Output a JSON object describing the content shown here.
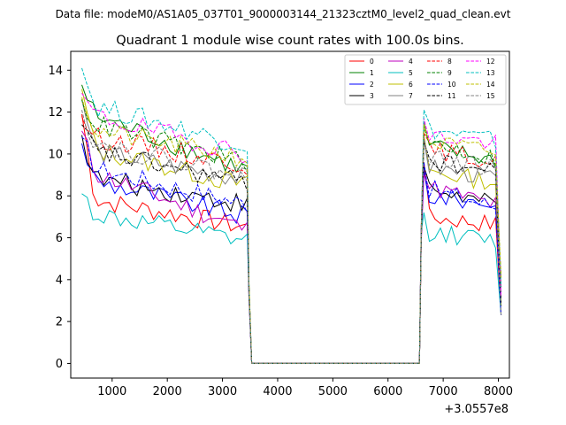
{
  "chart_data": {
    "type": "line",
    "suptitle": "Data file: modeM0/AS1A05_037T01_9000003144_21323cztM0_level2_quad_clean.evt",
    "title": "Quadrant 1 module wise count rates with 100.0s bins.",
    "xlabel": "",
    "ylabel": "",
    "x_offset_label": "+3.0557e8",
    "xlim": [
      250,
      8200
    ],
    "ylim": [
      -0.7,
      14.9
    ],
    "xticks": [
      "1000",
      "2000",
      "3000",
      "4000",
      "5000",
      "6000",
      "7000",
      "8000"
    ],
    "yticks": [
      "0",
      "2",
      "4",
      "6",
      "8",
      "10",
      "12",
      "14"
    ],
    "gap": [
      3530,
      6570
    ],
    "segment1_x": [
      450,
      3450
    ],
    "segment2_x": [
      6650,
      8050
    ],
    "legend_position": "upper right",
    "series": [
      {
        "name": "0",
        "color": "#ff0000",
        "dash": "solid",
        "start1": 11.9,
        "level1": 7.2,
        "end1": 6.5,
        "start2": 9.6,
        "level2": 7.0,
        "end2": 6.6
      },
      {
        "name": "1",
        "color": "#008000",
        "dash": "solid",
        "start1": 13.3,
        "level1": 11.2,
        "end1": 9.2,
        "start2": 11.5,
        "level2": 10.4,
        "end2": 9.6
      },
      {
        "name": "2",
        "color": "#0000ff",
        "dash": "solid",
        "start1": 10.5,
        "level1": 8.1,
        "end1": 7.0,
        "start2": 9.2,
        "level2": 8.0,
        "end2": 7.6
      },
      {
        "name": "3",
        "color": "#000000",
        "dash": "solid",
        "start1": 10.9,
        "level1": 8.2,
        "end1": 7.6,
        "start2": 9.4,
        "level2": 8.4,
        "end2": 7.5
      },
      {
        "name": "4",
        "color": "#bf00bf",
        "dash": "solid",
        "start1": 11.1,
        "level1": 8.5,
        "end1": 6.4,
        "start2": 9.0,
        "level2": 8.5,
        "end2": 7.5
      },
      {
        "name": "5",
        "color": "#00bfbf",
        "dash": "solid",
        "start1": 8.1,
        "level1": 6.5,
        "end1": 5.8,
        "start2": 7.2,
        "level2": 6.3,
        "end2": 5.8
      },
      {
        "name": "6",
        "color": "#bfbf00",
        "dash": "solid",
        "start1": 13.1,
        "level1": 9.6,
        "end1": 8.5,
        "start2": 10.9,
        "level2": 9.2,
        "end2": 8.6
      },
      {
        "name": "7",
        "color": "#808080",
        "dash": "solid",
        "start1": 12.6,
        "level1": 9.5,
        "end1": 8.8,
        "start2": 10.7,
        "level2": 9.4,
        "end2": 8.8
      },
      {
        "name": "8",
        "color": "#ff0000",
        "dash": "dashed",
        "start1": 11.8,
        "level1": 10.2,
        "end1": 9.5,
        "start2": 11.0,
        "level2": 10.3,
        "end2": 9.5
      },
      {
        "name": "9",
        "color": "#008000",
        "dash": "dashed",
        "start1": 12.6,
        "level1": 10.8,
        "end1": 9.6,
        "start2": 11.3,
        "level2": 10.6,
        "end2": 9.7
      },
      {
        "name": "10",
        "color": "#0000ff",
        "dash": "dashed",
        "start1": 10.8,
        "level1": 8.7,
        "end1": 7.6,
        "start2": 9.6,
        "level2": 8.4,
        "end2": 7.4
      },
      {
        "name": "11",
        "color": "#000000",
        "dash": "dashed",
        "start1": 11.4,
        "level1": 9.5,
        "end1": 8.6,
        "start2": 10.6,
        "level2": 9.7,
        "end2": 9.1
      },
      {
        "name": "12",
        "color": "#ff00ff",
        "dash": "dashed",
        "start1": 12.9,
        "level1": 11.2,
        "end1": 10.0,
        "start2": 11.7,
        "level2": 10.9,
        "end2": 10.5
      },
      {
        "name": "13",
        "color": "#00bfbf",
        "dash": "dashed",
        "start1": 14.1,
        "level1": 11.7,
        "end1": 10.4,
        "start2": 12.1,
        "level2": 11.2,
        "end2": 10.6
      },
      {
        "name": "14",
        "color": "#bfbf00",
        "dash": "dashed",
        "start1": 12.7,
        "level1": 10.5,
        "end1": 9.8,
        "start2": 11.4,
        "level2": 10.6,
        "end2": 10.0
      },
      {
        "name": "15",
        "color": "#808080",
        "dash": "dashed",
        "start1": 12.1,
        "level1": 9.9,
        "end1": 8.9,
        "start2": 10.8,
        "level2": 9.9,
        "end2": 9.2
      }
    ]
  }
}
